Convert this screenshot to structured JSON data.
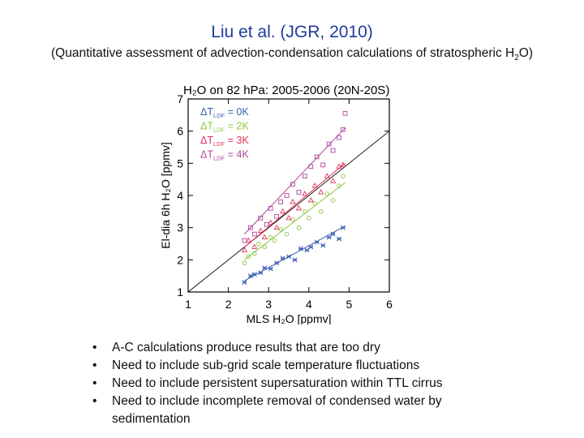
{
  "slide": {
    "title": "Liu et al. (JGR, 2010)",
    "subtitle_pre": "(Quantitative assessment of advection-condensation calculations of stratospheric H",
    "subtitle_sub": "2",
    "subtitle_post": "O)",
    "bullets": [
      "A-C calculations produce results that are too dry",
      "Need to include sub-grid scale temperature fluctuations",
      "Need to include persistent supersaturation within TTL cirrus",
      "Need to include incomplete removal of condensed water by sedimentation"
    ],
    "bullet_symbol": "•"
  },
  "chart_data": {
    "type": "scatter",
    "title": "H₂O on 82 hPa: 2005-2006 (20N-20S)",
    "xlabel": "MLS H₂O [ppmv]",
    "ylabel": "El-dia 6h H₂O [ppmv]",
    "xlim": [
      1,
      6
    ],
    "ylim": [
      1,
      7
    ],
    "xticks": [
      1,
      2,
      3,
      4,
      5,
      6
    ],
    "yticks": [
      1,
      2,
      3,
      4,
      5,
      6,
      7
    ],
    "one_to_one_line": true,
    "legend_position": "top-left",
    "series": [
      {
        "name": "ΔT_LDF = 0K",
        "legend_label": "ΔT",
        "legend_sub": "LDF",
        "legend_suffix": " = 0K",
        "color": "#3a5fb0",
        "marker": "star",
        "x": [
          2.4,
          2.55,
          2.65,
          2.8,
          2.9,
          3.05,
          3.2,
          3.35,
          3.5,
          3.65,
          3.8,
          3.95,
          4.05,
          4.2,
          4.35,
          4.5,
          4.6,
          4.75,
          4.85
        ],
        "y": [
          1.3,
          1.5,
          1.55,
          1.6,
          1.75,
          1.72,
          1.9,
          2.05,
          2.1,
          2.0,
          2.35,
          2.3,
          2.4,
          2.55,
          2.45,
          2.7,
          2.8,
          2.65,
          3.0
        ],
        "fit": [
          [
            2.4,
            1.35
          ],
          [
            4.9,
            3.05
          ]
        ]
      },
      {
        "name": "ΔT_LDF = 2K",
        "legend_label": "ΔT",
        "legend_sub": "LDF",
        "legend_suffix": " = 2K",
        "color": "#8cc63f",
        "marker": "circle",
        "x": [
          2.4,
          2.5,
          2.65,
          2.75,
          2.9,
          3.05,
          3.15,
          3.3,
          3.45,
          3.6,
          3.75,
          3.9,
          4.0,
          4.15,
          4.3,
          4.45,
          4.6,
          4.75,
          4.85
        ],
        "y": [
          1.9,
          2.1,
          2.2,
          2.5,
          2.4,
          2.7,
          2.6,
          2.95,
          2.8,
          3.25,
          3.0,
          3.5,
          3.3,
          3.75,
          3.5,
          4.05,
          3.85,
          4.3,
          4.6
        ],
        "fit": [
          [
            2.4,
            2.0
          ],
          [
            4.9,
            4.4
          ]
        ]
      },
      {
        "name": "ΔT_LDF = 3K",
        "legend_label": "ΔT",
        "legend_sub": "LDF",
        "legend_suffix": " = 3K",
        "color": "#e0315a",
        "marker": "triangle",
        "x": [
          2.4,
          2.5,
          2.65,
          2.8,
          2.9,
          3.05,
          3.2,
          3.35,
          3.5,
          3.6,
          3.75,
          3.9,
          4.05,
          4.15,
          4.3,
          4.45,
          4.6,
          4.75,
          4.85
        ],
        "y": [
          2.3,
          2.6,
          2.4,
          2.9,
          2.7,
          3.15,
          3.0,
          3.5,
          3.3,
          3.8,
          3.6,
          4.05,
          3.85,
          4.3,
          4.1,
          4.6,
          4.45,
          4.9,
          4.95
        ],
        "fit": [
          [
            2.4,
            2.4
          ],
          [
            4.9,
            5.0
          ]
        ]
      },
      {
        "name": "ΔT_LDF = 4K",
        "legend_label": "ΔT",
        "legend_sub": "LDF",
        "legend_suffix": " = 4K",
        "color": "#b0459b",
        "marker": "square",
        "x": [
          2.4,
          2.55,
          2.65,
          2.8,
          2.95,
          3.05,
          3.2,
          3.3,
          3.45,
          3.6,
          3.75,
          3.9,
          4.05,
          4.2,
          4.35,
          4.5,
          4.6,
          4.75,
          4.85,
          4.9
        ],
        "y": [
          2.6,
          3.0,
          2.8,
          3.3,
          3.1,
          3.6,
          3.35,
          3.8,
          4.0,
          4.35,
          4.1,
          4.6,
          4.9,
          5.2,
          4.95,
          5.6,
          5.4,
          5.8,
          6.05,
          6.55
        ],
        "fit": [
          [
            2.4,
            2.8
          ],
          [
            4.9,
            6.1
          ]
        ]
      }
    ]
  }
}
